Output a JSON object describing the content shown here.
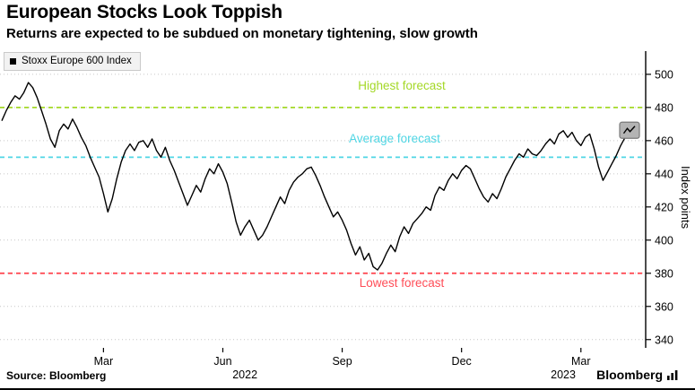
{
  "header": {
    "title": "European Stocks Look Toppish",
    "subtitle": "Returns are expected to be subdued on monetary tightening, slow growth"
  },
  "footer": {
    "source_label": "Source: Bloomberg",
    "brand": "Bloomberg"
  },
  "chart_data": {
    "type": "line",
    "title": "European Stocks Look Toppish",
    "subtitle": "Returns are expected to be subdued on monetary tightening, slow growth",
    "series_name": "Stoxx Europe 600 Index",
    "line_color": "#000000",
    "background_color": "#ffffff",
    "grid": true,
    "legend_position": "top-left",
    "y_axis_label": "Index points",
    "ylim": [
      335,
      514
    ],
    "y_ticks": [
      340,
      360,
      380,
      400,
      420,
      440,
      460,
      480,
      500
    ],
    "x_ticks": [
      {
        "label": "Mar",
        "idx": 23
      },
      {
        "label": "Jun",
        "idx": 50
      },
      {
        "label": "Sep",
        "idx": 77
      },
      {
        "label": "Dec",
        "idx": 104
      },
      {
        "label": "Mar",
        "idx": 131
      }
    ],
    "year_ticks": [
      {
        "label": "2022",
        "idx": 55
      },
      {
        "label": "2023",
        "idx": 127
      }
    ],
    "ref_lines": [
      {
        "label": "Highest forecast",
        "value": 480,
        "color": "#a4d827"
      },
      {
        "label": "Average forecast",
        "value": 450,
        "color": "#4fd6e4"
      },
      {
        "label": "Lowest forecast",
        "value": 380,
        "color": "#ff4d57"
      }
    ],
    "end_marker": {
      "type": "squiggle-box",
      "fill": "#b4b4b4",
      "border": "#7a7a7a"
    },
    "x_span": "Dec 2021 - Apr 2023",
    "values": [
      472,
      478,
      483,
      487,
      485,
      489,
      495,
      492,
      486,
      478,
      470,
      461,
      456,
      466,
      470,
      467,
      473,
      468,
      462,
      457,
      450,
      444,
      438,
      428,
      417,
      425,
      437,
      447,
      454,
      458,
      454,
      459,
      460,
      456,
      461,
      454,
      450,
      456,
      448,
      442,
      435,
      428,
      421,
      427,
      433,
      429,
      437,
      443,
      440,
      446,
      441,
      434,
      423,
      411,
      403,
      408,
      412,
      406,
      400,
      403,
      408,
      414,
      420,
      426,
      422,
      430,
      435,
      438,
      440,
      443,
      444,
      439,
      433,
      426,
      420,
      414,
      417,
      412,
      406,
      398,
      391,
      396,
      388,
      392,
      384,
      382,
      386,
      392,
      397,
      393,
      402,
      408,
      404,
      410,
      413,
      416,
      420,
      418,
      427,
      432,
      430,
      436,
      440,
      437,
      442,
      445,
      443,
      437,
      431,
      426,
      423,
      428,
      425,
      431,
      438,
      443,
      448,
      452,
      450,
      455,
      452,
      451,
      454,
      458,
      461,
      458,
      464,
      466,
      462,
      465,
      460,
      457,
      462,
      464,
      455,
      444,
      436,
      441,
      446,
      451,
      457,
      462,
      466
    ]
  }
}
